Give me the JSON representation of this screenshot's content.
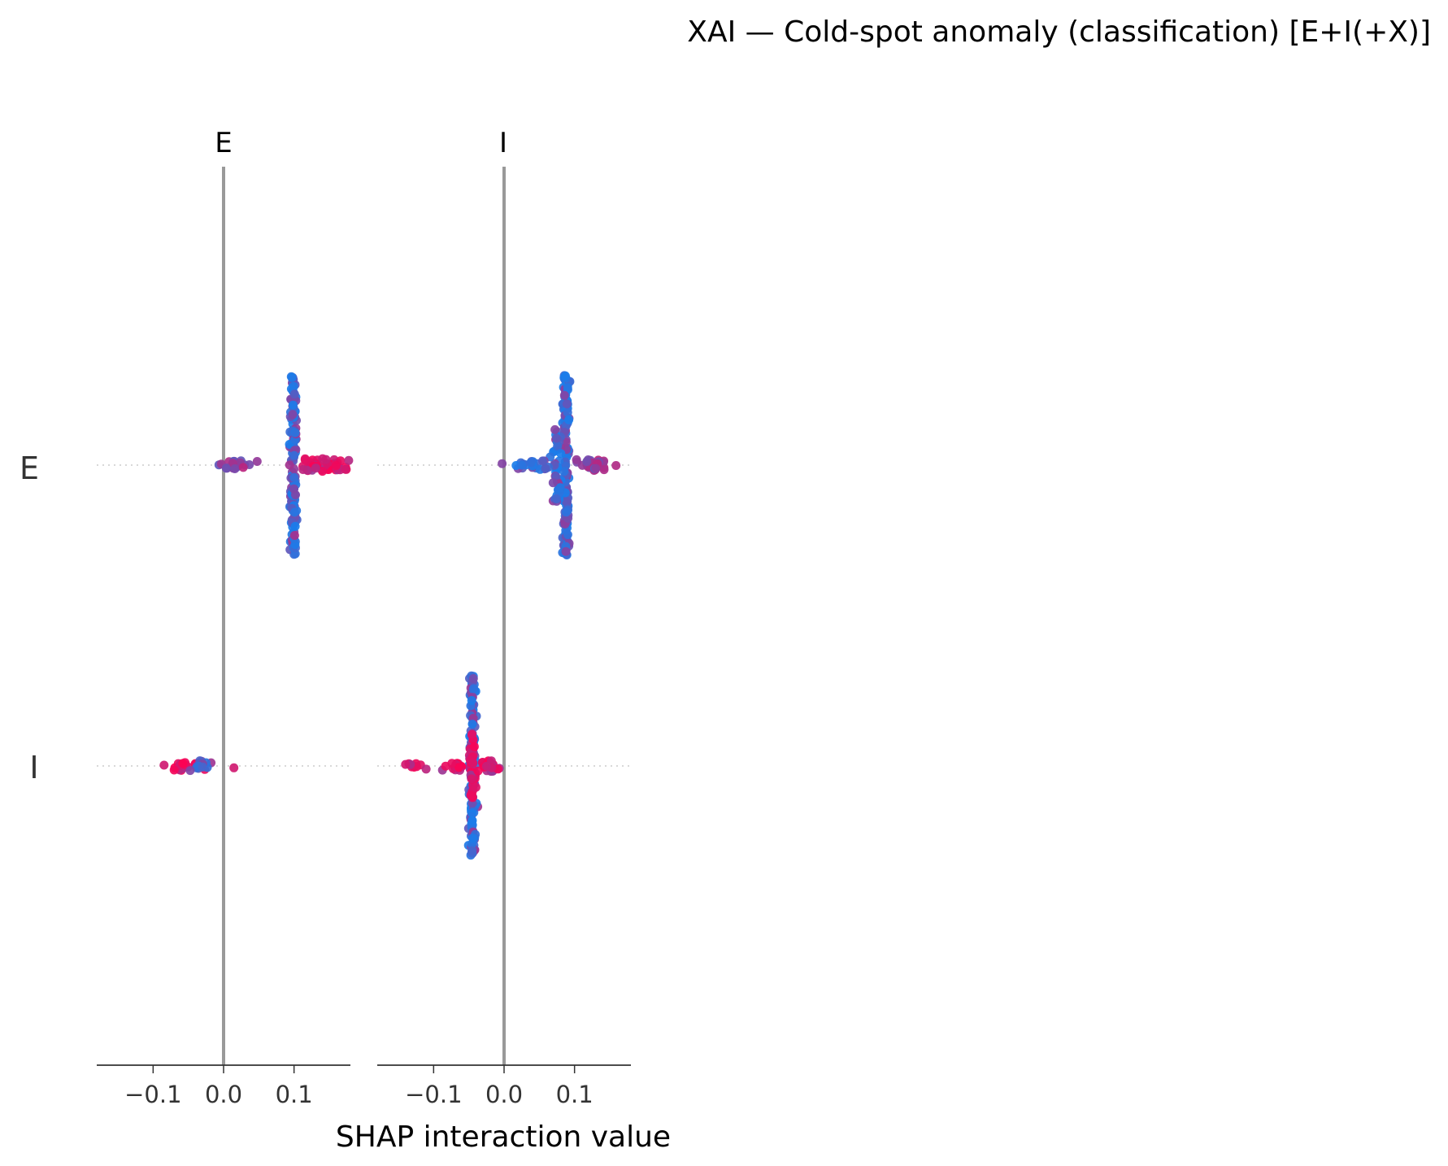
{
  "chart_data": {
    "type": "scatter",
    "title": "XAI — Cold-spot anomaly (classification) [E+I(+X)]",
    "xlabel": "SHAP interaction value",
    "columns": [
      "E",
      "I"
    ],
    "rows": [
      "E",
      "I"
    ],
    "xlim": [
      -0.18,
      0.18
    ],
    "xticks": [
      {
        "value": -0.1,
        "label": "−0.1"
      },
      {
        "value": 0.0,
        "label": "0.0"
      },
      {
        "value": 0.1,
        "label": "0.1"
      }
    ],
    "zero_line": true,
    "grid": false,
    "colors": {
      "high": "#ff0052",
      "low": "#008bfb",
      "mid": "#8a2be2",
      "zero_line": "#999999",
      "axis": "#333333"
    },
    "panels": [
      {
        "column": "E",
        "clusters": [
          {
            "row": "E",
            "x_center": 0.099,
            "x_spread": 0.004,
            "vertical_extent": 0.82,
            "points": 140,
            "hue": "blue"
          },
          {
            "row": "E",
            "x_center": 0.16,
            "x_spread": 0.02,
            "vertical_extent": 0.05,
            "points": 28,
            "hue": "red"
          },
          {
            "row": "E",
            "x_center": 0.125,
            "x_spread": 0.015,
            "vertical_extent": 0.06,
            "points": 24,
            "hue": "red"
          },
          {
            "row": "E",
            "x_center": 0.015,
            "x_spread": 0.02,
            "vertical_extent": 0.04,
            "points": 20,
            "hue": "purple"
          },
          {
            "row": "I",
            "x_center": -0.06,
            "x_spread": 0.02,
            "vertical_extent": 0.04,
            "points": 22,
            "hue": "red"
          },
          {
            "row": "I",
            "x_center": -0.03,
            "x_spread": 0.01,
            "vertical_extent": 0.05,
            "points": 14,
            "hue": "blue"
          },
          {
            "row": "I",
            "x_center": 0.014,
            "x_spread": 0.001,
            "vertical_extent": 0.02,
            "points": 1,
            "hue": "red"
          }
        ]
      },
      {
        "column": "I",
        "clusters": [
          {
            "row": "E",
            "x_center": 0.088,
            "x_spread": 0.004,
            "vertical_extent": 0.82,
            "points": 140,
            "hue": "blue"
          },
          {
            "row": "E",
            "x_center": 0.075,
            "x_spread": 0.006,
            "vertical_extent": 0.35,
            "points": 40,
            "hue": "blue"
          },
          {
            "row": "E",
            "x_center": 0.13,
            "x_spread": 0.02,
            "vertical_extent": 0.05,
            "points": 30,
            "hue": "purple"
          },
          {
            "row": "E",
            "x_center": 0.04,
            "x_spread": 0.025,
            "vertical_extent": 0.04,
            "points": 22,
            "hue": "blue"
          },
          {
            "row": "I",
            "x_center": -0.045,
            "x_spread": 0.004,
            "vertical_extent": 0.82,
            "points": 140,
            "hue": "blue"
          },
          {
            "row": "I",
            "x_center": -0.045,
            "x_spread": 0.004,
            "vertical_extent": 0.3,
            "points": 40,
            "hue": "red"
          },
          {
            "row": "I",
            "x_center": -0.02,
            "x_spread": 0.015,
            "vertical_extent": 0.05,
            "points": 22,
            "hue": "red"
          },
          {
            "row": "I",
            "x_center": -0.07,
            "x_spread": 0.01,
            "vertical_extent": 0.04,
            "points": 16,
            "hue": "red"
          },
          {
            "row": "I",
            "x_center": -0.125,
            "x_spread": 0.01,
            "vertical_extent": 0.03,
            "points": 10,
            "hue": "red"
          }
        ]
      }
    ]
  }
}
